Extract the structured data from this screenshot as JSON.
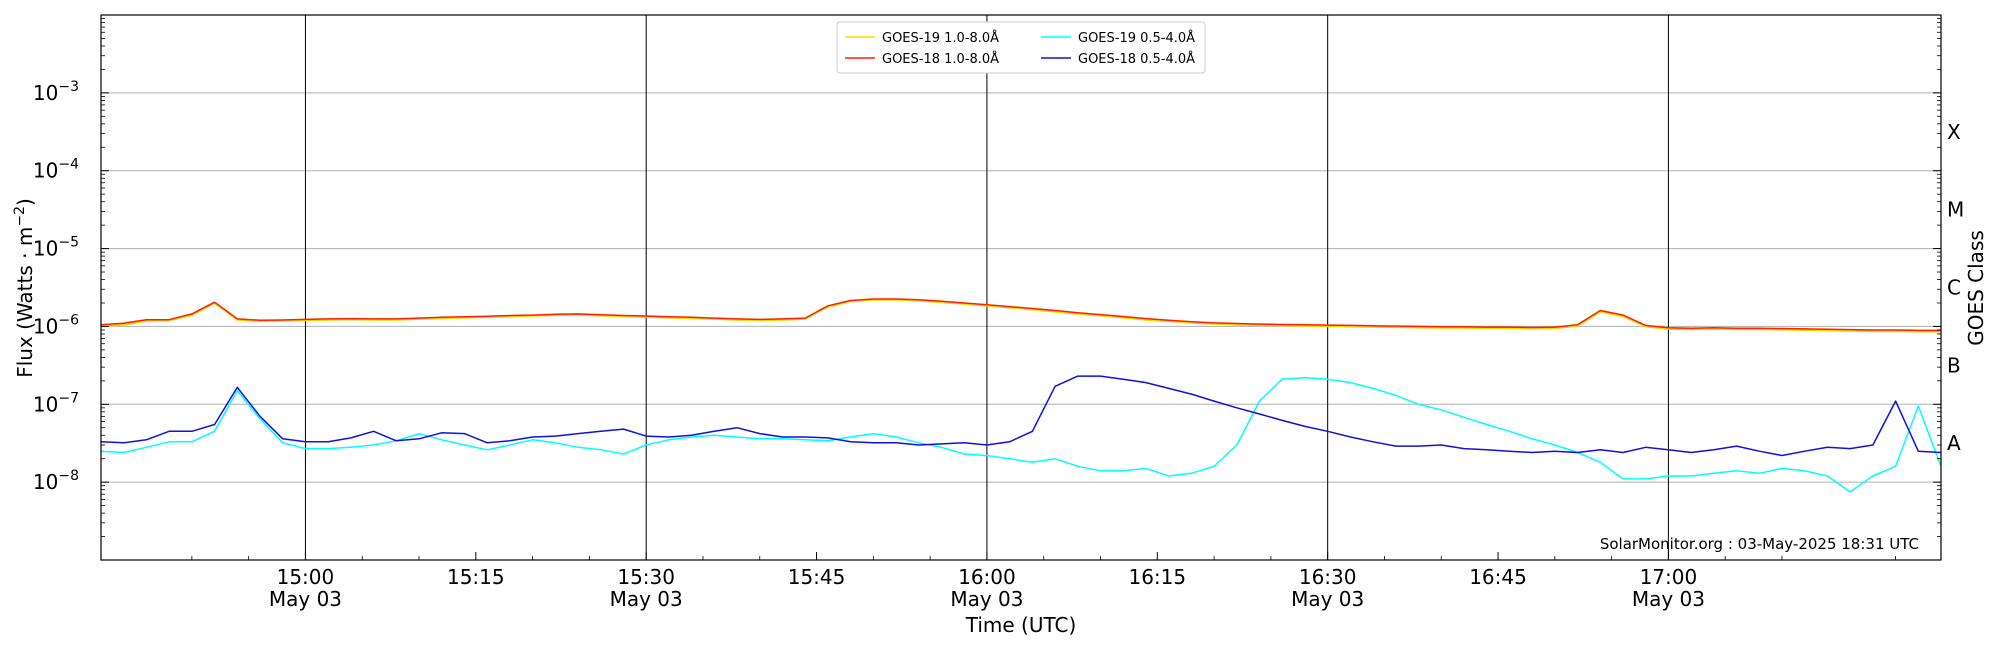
{
  "chart_data": {
    "type": "line",
    "x_unit": "time (UTC), 03-May-2025",
    "xlim": [
      "14:42",
      "17:24"
    ],
    "ylim": [
      1e-09,
      0.01
    ],
    "y_scale": "log",
    "xlabel": "Time (UTC)",
    "ylabel": "Flux (Watts · m",
    "ylabel_sup": "−2",
    "ylabel_close": ")",
    "right_axis_label": "GOES Class",
    "x_ticks": [
      {
        "time": "15:00",
        "label": "15:00",
        "sublabel": "May 03"
      },
      {
        "time": "15:15",
        "label": "15:15",
        "sublabel": ""
      },
      {
        "time": "15:30",
        "label": "15:30",
        "sublabel": "May 03"
      },
      {
        "time": "15:45",
        "label": "15:45",
        "sublabel": ""
      },
      {
        "time": "16:00",
        "label": "16:00",
        "sublabel": "May 03"
      },
      {
        "time": "16:15",
        "label": "16:15",
        "sublabel": ""
      },
      {
        "time": "16:30",
        "label": "16:30",
        "sublabel": "May 03"
      },
      {
        "time": "16:45",
        "label": "16:45",
        "sublabel": ""
      },
      {
        "time": "17:00",
        "label": "17:00",
        "sublabel": "May 03"
      }
    ],
    "y_ticks": [
      {
        "value": 1e-08,
        "base": "10",
        "exp": "−8"
      },
      {
        "value": 1e-07,
        "base": "10",
        "exp": "−7"
      },
      {
        "value": 1e-06,
        "base": "10",
        "exp": "−6"
      },
      {
        "value": 1e-05,
        "base": "10",
        "exp": "−5"
      },
      {
        "value": 0.0001,
        "base": "10",
        "exp": "−4"
      },
      {
        "value": 0.001,
        "base": "10",
        "exp": "−3"
      }
    ],
    "goes_classes": [
      {
        "label": "A",
        "value": 3.16e-08
      },
      {
        "label": "B",
        "value": 3.16e-07
      },
      {
        "label": "C",
        "value": 3.16e-06
      },
      {
        "label": "M",
        "value": 3.16e-05
      },
      {
        "label": "X",
        "value": 0.000316
      }
    ],
    "horizontal_grid": true,
    "vertical_lines_at": [
      "15:00",
      "15:30",
      "16:00",
      "16:30",
      "17:00"
    ],
    "legend_position": "top-center",
    "credit": "SolarMonitor.org : 03-May-2025 18:31 UTC",
    "x": [
      "14:42",
      "14:44",
      "14:46",
      "14:48",
      "14:50",
      "14:52",
      "14:54",
      "14:56",
      "14:58",
      "15:00",
      "15:02",
      "15:04",
      "15:06",
      "15:08",
      "15:10",
      "15:12",
      "15:14",
      "15:16",
      "15:18",
      "15:20",
      "15:22",
      "15:24",
      "15:26",
      "15:28",
      "15:30",
      "15:32",
      "15:34",
      "15:36",
      "15:38",
      "15:40",
      "15:42",
      "15:44",
      "15:46",
      "15:48",
      "15:50",
      "15:52",
      "15:54",
      "15:56",
      "15:58",
      "16:00",
      "16:02",
      "16:04",
      "16:06",
      "16:08",
      "16:10",
      "16:12",
      "16:14",
      "16:16",
      "16:18",
      "16:20",
      "16:22",
      "16:24",
      "16:26",
      "16:28",
      "16:30",
      "16:32",
      "16:34",
      "16:36",
      "16:38",
      "16:40",
      "16:42",
      "16:44",
      "16:46",
      "16:48",
      "16:50",
      "16:52",
      "16:54",
      "16:56",
      "16:58",
      "17:00",
      "17:02",
      "17:04",
      "17:06",
      "17:08",
      "17:10",
      "17:12",
      "17:14",
      "17:16",
      "17:18",
      "17:20",
      "17:22",
      "17:24"
    ],
    "series": [
      {
        "name": "GOES-19 1.0-8.0Å",
        "color": "#ffd700",
        "width": 2,
        "values": [
          1e-06,
          1.05e-06,
          1.18e-06,
          1.2e-06,
          1.4e-06,
          2e-06,
          1.22e-06,
          1.17e-06,
          1.18e-06,
          1.2e-06,
          1.22e-06,
          1.23e-06,
          1.22e-06,
          1.22e-06,
          1.25e-06,
          1.28e-06,
          1.3e-06,
          1.32e-06,
          1.35e-06,
          1.37e-06,
          1.4e-06,
          1.42e-06,
          1.38e-06,
          1.35e-06,
          1.33e-06,
          1.3e-06,
          1.28e-06,
          1.25e-06,
          1.22e-06,
          1.2e-06,
          1.22e-06,
          1.25e-06,
          1.8e-06,
          2.1e-06,
          2.2e-06,
          2.2e-06,
          2.15e-06,
          2.05e-06,
          1.95e-06,
          1.85e-06,
          1.75e-06,
          1.65e-06,
          1.55e-06,
          1.45e-06,
          1.38e-06,
          1.3e-06,
          1.22e-06,
          1.17e-06,
          1.12e-06,
          1.08e-06,
          1.06e-06,
          1.04e-06,
          1.03e-06,
          1.02e-06,
          1.01e-06,
          1e-06,
          9.9e-07,
          9.8e-07,
          9.7e-07,
          9.6e-07,
          9.6e-07,
          9.5e-07,
          9.5e-07,
          9.4e-07,
          9.5e-07,
          1.02e-06,
          1.55e-06,
          1.35e-06,
          1e-06,
          9.3e-07,
          9.2e-07,
          9.3e-07,
          9.2e-07,
          9.2e-07,
          9.1e-07,
          9e-07,
          8.9e-07,
          8.8e-07,
          8.7e-07,
          8.7e-07,
          8.6e-07,
          8.6e-07
        ]
      },
      {
        "name": "GOES-18 1.0-8.0Å",
        "color": "#ff2000",
        "width": 1.5,
        "values": [
          1.05e-06,
          1.1e-06,
          1.22e-06,
          1.22e-06,
          1.45e-06,
          2.05e-06,
          1.25e-06,
          1.2e-06,
          1.21e-06,
          1.23e-06,
          1.25e-06,
          1.26e-06,
          1.25e-06,
          1.25e-06,
          1.28e-06,
          1.31e-06,
          1.33e-06,
          1.35e-06,
          1.38e-06,
          1.4e-06,
          1.43e-06,
          1.45e-06,
          1.41e-06,
          1.38e-06,
          1.36e-06,
          1.33e-06,
          1.31e-06,
          1.28e-06,
          1.25e-06,
          1.23e-06,
          1.25e-06,
          1.28e-06,
          1.84e-06,
          2.15e-06,
          2.25e-06,
          2.25e-06,
          2.2e-06,
          2.1e-06,
          2e-06,
          1.9e-06,
          1.8e-06,
          1.7e-06,
          1.6e-06,
          1.5e-06,
          1.42e-06,
          1.34e-06,
          1.26e-06,
          1.2e-06,
          1.15e-06,
          1.11e-06,
          1.09e-06,
          1.07e-06,
          1.06e-06,
          1.05e-06,
          1.04e-06,
          1.03e-06,
          1.02e-06,
          1.01e-06,
          1e-06,
          9.9e-07,
          9.9e-07,
          9.8e-07,
          9.8e-07,
          9.7e-07,
          9.8e-07,
          1.05e-06,
          1.6e-06,
          1.4e-06,
          1.03e-06,
          9.6e-07,
          9.5e-07,
          9.6e-07,
          9.5e-07,
          9.5e-07,
          9.4e-07,
          9.3e-07,
          9.2e-07,
          9.1e-07,
          9e-07,
          9e-07,
          8.9e-07,
          8.9e-07
        ]
      },
      {
        "name": "GOES-19 0.5-4.0Å",
        "color": "#00ffff",
        "width": 1.5,
        "values": [
          2.5e-08,
          2.4e-08,
          2.8e-08,
          3.3e-08,
          3.3e-08,
          4.5e-08,
          1.5e-07,
          6.5e-08,
          3.2e-08,
          2.7e-08,
          2.7e-08,
          2.8e-08,
          3e-08,
          3.4e-08,
          4.2e-08,
          3.5e-08,
          3e-08,
          2.6e-08,
          3e-08,
          3.5e-08,
          3.2e-08,
          2.8e-08,
          2.6e-08,
          2.3e-08,
          3e-08,
          3.5e-08,
          3.8e-08,
          4e-08,
          3.8e-08,
          3.6e-08,
          3.6e-08,
          3.5e-08,
          3.4e-08,
          3.8e-08,
          4.2e-08,
          3.8e-08,
          3.2e-08,
          2.8e-08,
          2.3e-08,
          2.2e-08,
          2e-08,
          1.8e-08,
          2e-08,
          1.6e-08,
          1.4e-08,
          1.4e-08,
          1.5e-08,
          1.2e-08,
          1.3e-08,
          1.6e-08,
          3e-08,
          1.1e-07,
          2.1e-07,
          2.2e-07,
          2.1e-07,
          1.9e-07,
          1.6e-07,
          1.3e-07,
          1e-07,
          8.5e-08,
          6.8e-08,
          5.5e-08,
          4.5e-08,
          3.6e-08,
          3e-08,
          2.4e-08,
          1.8e-08,
          1.1e-08,
          1.1e-08,
          1.2e-08,
          1.2e-08,
          1.3e-08,
          1.4e-08,
          1.3e-08,
          1.5e-08,
          1.4e-08,
          1.2e-08,
          7.5e-09,
          1.2e-08,
          1.6e-08,
          9.5e-08,
          1.6e-08
        ]
      },
      {
        "name": "GOES-18 0.5-4.0Å",
        "color": "#1010e0",
        "width": 1.5,
        "values": [
          3.3e-08,
          3.2e-08,
          3.5e-08,
          4.5e-08,
          4.5e-08,
          5.5e-08,
          1.65e-07,
          7e-08,
          3.6e-08,
          3.3e-08,
          3.3e-08,
          3.7e-08,
          4.5e-08,
          3.4e-08,
          3.6e-08,
          4.3e-08,
          4.2e-08,
          3.2e-08,
          3.4e-08,
          3.8e-08,
          3.9e-08,
          4.2e-08,
          4.5e-08,
          4.8e-08,
          3.9e-08,
          3.8e-08,
          4e-08,
          4.5e-08,
          5e-08,
          4.2e-08,
          3.8e-08,
          3.8e-08,
          3.7e-08,
          3.3e-08,
          3.2e-08,
          3.2e-08,
          3e-08,
          3.1e-08,
          3.2e-08,
          3e-08,
          3.3e-08,
          4.5e-08,
          1.7e-07,
          2.3e-07,
          2.3e-07,
          2.1e-07,
          1.9e-07,
          1.6e-07,
          1.35e-07,
          1.1e-07,
          9e-08,
          7.5e-08,
          6.2e-08,
          5.2e-08,
          4.5e-08,
          3.8e-08,
          3.3e-08,
          2.9e-08,
          2.9e-08,
          3e-08,
          2.7e-08,
          2.6e-08,
          2.5e-08,
          2.4e-08,
          2.5e-08,
          2.4e-08,
          2.6e-08,
          2.4e-08,
          2.8e-08,
          2.6e-08,
          2.4e-08,
          2.6e-08,
          2.9e-08,
          2.5e-08,
          2.2e-08,
          2.5e-08,
          2.8e-08,
          2.7e-08,
          3e-08,
          1.1e-07,
          2.5e-08,
          2.4e-08
        ]
      }
    ]
  }
}
